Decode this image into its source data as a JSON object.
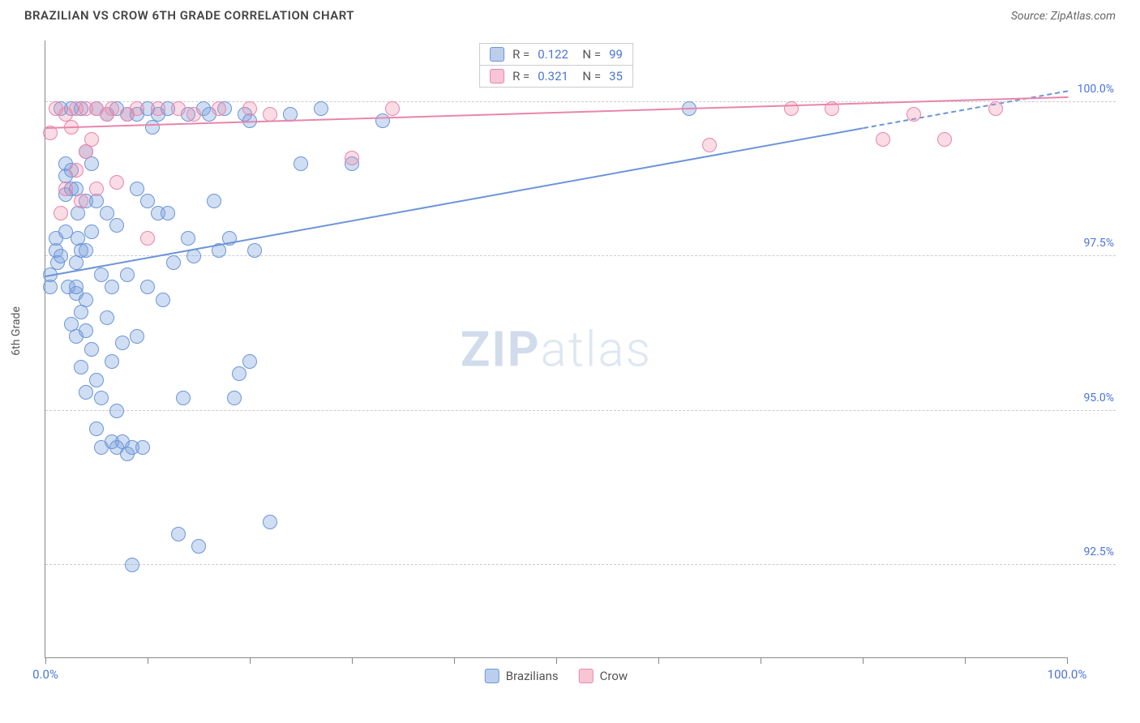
{
  "header": {
    "title": "BRAZILIAN VS CROW 6TH GRADE CORRELATION CHART",
    "source": "Source: ZipAtlas.com"
  },
  "chart": {
    "type": "scatter",
    "y_axis_title": "6th Grade",
    "background_color": "#ffffff",
    "grid_color": "#cccccc",
    "axis_color": "#888888",
    "text_color_axis": "#4a74d8",
    "marker_size": 18,
    "xlim": [
      0,
      100
    ],
    "ylim": [
      91,
      101
    ],
    "x_ticks": [
      0,
      10,
      20,
      30,
      40,
      50,
      60,
      70,
      80,
      90,
      100
    ],
    "x_tick_labels": {
      "0": "0.0%",
      "100": "100.0%"
    },
    "y_gridlines": [
      92.5,
      95.0,
      97.5,
      100.0
    ],
    "y_tick_labels": {
      "92.5": "92.5%",
      "95.0": "95.0%",
      "97.5": "97.5%",
      "100.0": "100.0%"
    },
    "watermark": {
      "bold": "ZIP",
      "light": "atlas"
    },
    "series": [
      {
        "name": "Brazilians",
        "color": "#6b95d8",
        "fill": "rgba(120,160,220,0.35)",
        "R": "0.122",
        "N": "99",
        "trend": {
          "x1": 0,
          "y1": 97.2,
          "x2": 80,
          "y2": 99.6,
          "extrap_x2": 100,
          "extrap_y2": 100.2
        },
        "points": [
          [
            0.5,
            97.0
          ],
          [
            0.5,
            97.2
          ],
          [
            1,
            97.6
          ],
          [
            1,
            97.8
          ],
          [
            1.2,
            97.4
          ],
          [
            1.5,
            99.9
          ],
          [
            1.5,
            97.5
          ],
          [
            2,
            97.9
          ],
          [
            2,
            98.5
          ],
          [
            2,
            98.8
          ],
          [
            2,
            99.0
          ],
          [
            2.2,
            97.0
          ],
          [
            2.5,
            99.9
          ],
          [
            2.5,
            98.9
          ],
          [
            2.5,
            98.6
          ],
          [
            2.5,
            96.4
          ],
          [
            3,
            98.6
          ],
          [
            3,
            97.4
          ],
          [
            3,
            96.9
          ],
          [
            3,
            96.2
          ],
          [
            3,
            97.0
          ],
          [
            3.2,
            97.8
          ],
          [
            3.2,
            98.2
          ],
          [
            3.5,
            99.9
          ],
          [
            3.5,
            97.6
          ],
          [
            3.5,
            96.6
          ],
          [
            3.5,
            95.7
          ],
          [
            4,
            99.2
          ],
          [
            4,
            98.4
          ],
          [
            4,
            97.6
          ],
          [
            4,
            96.3
          ],
          [
            4,
            95.3
          ],
          [
            4,
            96.8
          ],
          [
            4.5,
            99.0
          ],
          [
            4.5,
            97.9
          ],
          [
            4.5,
            96.0
          ],
          [
            5,
            98.4
          ],
          [
            5,
            94.7
          ],
          [
            5,
            95.5
          ],
          [
            5,
            99.9
          ],
          [
            5.5,
            97.2
          ],
          [
            5.5,
            95.2
          ],
          [
            5.5,
            94.4
          ],
          [
            6,
            98.2
          ],
          [
            6,
            99.8
          ],
          [
            6,
            96.5
          ],
          [
            6.5,
            94.5
          ],
          [
            6.5,
            95.8
          ],
          [
            6.5,
            97.0
          ],
          [
            7,
            99.9
          ],
          [
            7,
            98.0
          ],
          [
            7,
            95.0
          ],
          [
            7,
            94.4
          ],
          [
            7.5,
            96.1
          ],
          [
            7.5,
            94.5
          ],
          [
            8,
            99.8
          ],
          [
            8,
            97.2
          ],
          [
            8,
            94.3
          ],
          [
            8.5,
            94.4
          ],
          [
            8.5,
            92.5
          ],
          [
            9,
            99.8
          ],
          [
            9,
            98.6
          ],
          [
            9,
            96.2
          ],
          [
            9.5,
            94.4
          ],
          [
            10,
            99.9
          ],
          [
            10,
            98.4
          ],
          [
            10,
            97.0
          ],
          [
            10.5,
            99.6
          ],
          [
            11,
            99.8
          ],
          [
            11,
            98.2
          ],
          [
            11.5,
            96.8
          ],
          [
            12,
            99.9
          ],
          [
            12,
            98.2
          ],
          [
            12.5,
            97.4
          ],
          [
            13,
            93.0
          ],
          [
            13.5,
            95.2
          ],
          [
            14,
            99.8
          ],
          [
            14,
            97.8
          ],
          [
            14.5,
            97.5
          ],
          [
            15,
            92.8
          ],
          [
            15.5,
            99.9
          ],
          [
            16,
            99.8
          ],
          [
            16.5,
            98.4
          ],
          [
            17,
            97.6
          ],
          [
            17.5,
            99.9
          ],
          [
            18,
            97.8
          ],
          [
            18.5,
            95.2
          ],
          [
            19,
            95.6
          ],
          [
            19.5,
            99.8
          ],
          [
            20,
            99.7
          ],
          [
            20,
            95.8
          ],
          [
            20.5,
            97.6
          ],
          [
            22,
            93.2
          ],
          [
            24,
            99.8
          ],
          [
            25,
            99.0
          ],
          [
            27,
            99.9
          ],
          [
            30,
            99.0
          ],
          [
            33,
            99.7
          ],
          [
            63,
            99.9
          ]
        ]
      },
      {
        "name": "Crow",
        "color": "#e985ab",
        "fill": "rgba(240,140,170,0.30)",
        "R": "0.321",
        "N": "35",
        "trend": {
          "x1": 0,
          "y1": 99.6,
          "x2": 100,
          "y2": 100.1,
          "extrap_x2": null,
          "extrap_y2": null
        },
        "points": [
          [
            0.5,
            99.5
          ],
          [
            1,
            99.9
          ],
          [
            1.5,
            98.2
          ],
          [
            2,
            99.8
          ],
          [
            2,
            98.6
          ],
          [
            2.5,
            99.6
          ],
          [
            3,
            99.9
          ],
          [
            3,
            98.9
          ],
          [
            3.5,
            98.4
          ],
          [
            4,
            99.9
          ],
          [
            4,
            99.2
          ],
          [
            4.5,
            99.4
          ],
          [
            5,
            99.9
          ],
          [
            5,
            98.6
          ],
          [
            6,
            99.8
          ],
          [
            6.5,
            99.9
          ],
          [
            7,
            98.7
          ],
          [
            8,
            99.8
          ],
          [
            9,
            99.9
          ],
          [
            10,
            97.8
          ],
          [
            11,
            99.9
          ],
          [
            13,
            99.9
          ],
          [
            14.5,
            99.8
          ],
          [
            17,
            99.9
          ],
          [
            20,
            99.9
          ],
          [
            22,
            99.8
          ],
          [
            30,
            99.1
          ],
          [
            34,
            99.9
          ],
          [
            65,
            99.3
          ],
          [
            73,
            99.9
          ],
          [
            77,
            99.9
          ],
          [
            82,
            99.4
          ],
          [
            85,
            99.8
          ],
          [
            88,
            99.4
          ],
          [
            93,
            99.9
          ]
        ]
      }
    ],
    "legend_bottom": [
      {
        "label": "Brazilians",
        "swatch": "blue"
      },
      {
        "label": "Crow",
        "swatch": "pink"
      }
    ]
  }
}
